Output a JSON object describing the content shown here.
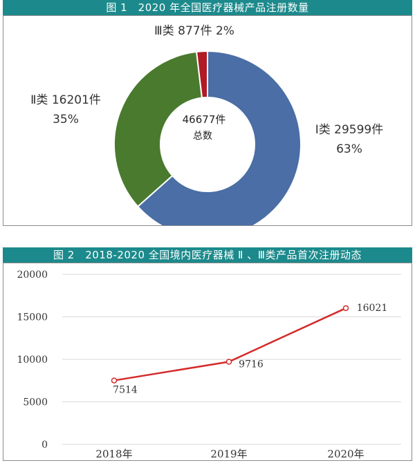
{
  "figure1": {
    "title": "图 1　2020 年全国医疗器械产品注册数量",
    "center_value": "46677件",
    "center_label": "总数"
  },
  "figure2": {
    "title": "图 2　2018-2020 全国境内医疗器械 Ⅱ 、Ⅲ类产品首次注册动态"
  },
  "colors": {
    "header_bg": "#1c8a8c",
    "class1": "#4a6ea5",
    "class2": "#4a7a2e",
    "class3": "#b01b26",
    "line": "#d42a2a",
    "grid": "#d9d9d9"
  },
  "chart_data": [
    {
      "type": "pie",
      "donut": true,
      "title": "图 1　2020 年全国医疗器械产品注册数量",
      "total": 46677,
      "total_label": "46677件",
      "slices": [
        {
          "name": "Ⅰ类",
          "value": 29599,
          "percent": 63,
          "label": "Ⅰ类 29599件",
          "pct_label": "63%",
          "color": "#4a6ea5"
        },
        {
          "name": "Ⅱ类",
          "value": 16201,
          "percent": 35,
          "label": "Ⅱ类 16201件",
          "pct_label": "35%",
          "color": "#4a7a2e"
        },
        {
          "name": "Ⅲ类",
          "value": 877,
          "percent": 2,
          "label": "Ⅲ类 877件 2%",
          "pct_label": "",
          "color": "#b01b26"
        }
      ]
    },
    {
      "type": "line",
      "title": "图 2　2018-2020 全国境内医疗器械 Ⅱ 、Ⅲ类产品首次注册动态",
      "categories": [
        "2018年",
        "2019年",
        "2020年"
      ],
      "series": [
        {
          "values": [
            7514,
            9716,
            16021
          ],
          "labels": [
            "7514",
            "9716",
            "16021"
          ]
        }
      ],
      "ylim": [
        0,
        20000
      ],
      "yticks": [
        0,
        5000,
        10000,
        15000,
        20000
      ],
      "grid": true
    }
  ]
}
